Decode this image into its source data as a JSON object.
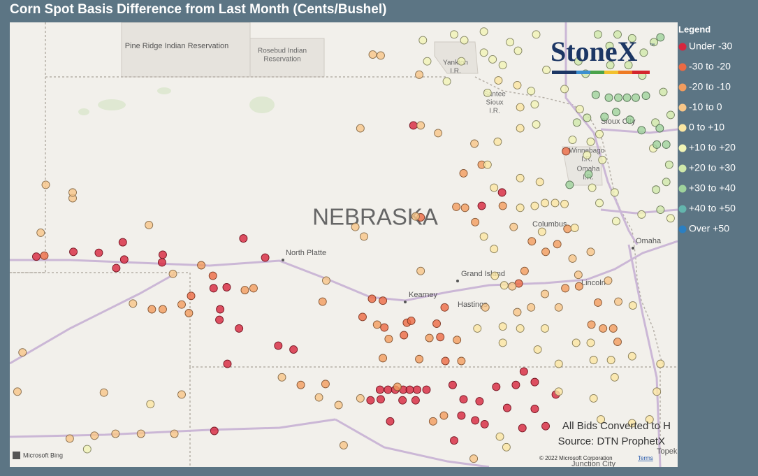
{
  "title": "Corn Spot Basis Difference from Last Month (Cents/Bushel)",
  "legend": {
    "title": "Legend",
    "items": [
      {
        "label": "Under -30",
        "color": "#d7263d"
      },
      {
        "label": "-30 to -20",
        "color": "#ec6a43"
      },
      {
        "label": "-20 to -10",
        "color": "#f29c5e"
      },
      {
        "label": "-10 to 0",
        "color": "#f8c688"
      },
      {
        "label": "0 to +10",
        "color": "#fbe6a2"
      },
      {
        "label": "+10 to +20",
        "color": "#f1f4b6"
      },
      {
        "label": "+20 to +30",
        "color": "#cfe8aa"
      },
      {
        "label": "+30 to +40",
        "color": "#9fd39c"
      },
      {
        "label": "+40 to +50",
        "color": "#63b5ad"
      },
      {
        "label": "Over +50",
        "color": "#2b7fc1"
      }
    ]
  },
  "logo": {
    "name": "StoneX",
    "mark": "™"
  },
  "map_labels": {
    "pine_ridge": "Pine Ridge Indian Reservation",
    "rosebud": [
      "Rosebud Indian",
      "Reservation"
    ],
    "yankton": [
      "Yankton",
      "I.R."
    ],
    "santee": [
      "Santee",
      "Sioux",
      "I.R."
    ],
    "sioux_city": "Sioux City",
    "winnebago": [
      "Winnebago",
      "I.R."
    ],
    "omaha_ir": [
      "Omaha",
      "I.R."
    ],
    "state": "NEBRASKA",
    "north_platte": "North Platte",
    "grand_island": "Grand Island",
    "kearney": "Kearney",
    "hastings": "Hastings",
    "columbus": "Columbus",
    "lincoln": "Lincoln",
    "omaha": "Omaha",
    "junction_city": "Junction City",
    "topeka": "Topek"
  },
  "notes": [
    "All Bids Converted to H",
    "Source: DTN ProphetX"
  ],
  "attribution": {
    "bing": "Microsoft Bing",
    "copyright": "© 2022 Microsoft Corporation",
    "terms": "Terms"
  },
  "bids": [
    [
      -104.2,
      41.16,
      0
    ],
    [
      -103.69,
      41.21,
      0
    ],
    [
      -103.34,
      41.2,
      0
    ],
    [
      -103.01,
      41.31,
      0
    ],
    [
      -102.99,
      41.13,
      0
    ],
    [
      -103.1,
      41.04,
      0
    ],
    [
      -102.46,
      41.18,
      0
    ],
    [
      -102.47,
      41.1,
      0
    ],
    [
      -101.35,
      41.35,
      0
    ],
    [
      -101.05,
      41.15,
      0
    ],
    [
      -101.76,
      40.83,
      0
    ],
    [
      -101.58,
      40.84,
      0
    ],
    [
      -101.67,
      40.61,
      0
    ],
    [
      -101.68,
      40.5,
      0
    ],
    [
      -101.41,
      40.41,
      0
    ],
    [
      -100.87,
      40.23,
      0
    ],
    [
      -100.66,
      40.19,
      0
    ],
    [
      -101.57,
      40.04,
      0
    ],
    [
      -101.75,
      39.34,
      0
    ],
    [
      -99.01,
      42.53,
      0
    ],
    [
      -97.79,
      41.83,
      0
    ],
    [
      -98.07,
      41.69,
      0
    ],
    [
      -99.47,
      39.77,
      0
    ],
    [
      -99.36,
      39.77,
      0
    ],
    [
      -99.26,
      39.77,
      0
    ],
    [
      -99.15,
      39.77,
      0
    ],
    [
      -99.06,
      39.77,
      0
    ],
    [
      -98.96,
      39.77,
      0
    ],
    [
      -98.83,
      39.77,
      0
    ],
    [
      -99.6,
      39.66,
      0
    ],
    [
      -99.46,
      39.67,
      0
    ],
    [
      -99.16,
      39.66,
      0
    ],
    [
      -98.98,
      39.66,
      0
    ],
    [
      -99.33,
      39.44,
      0
    ],
    [
      -98.47,
      39.82,
      0
    ],
    [
      -98.32,
      39.67,
      0
    ],
    [
      -98.1,
      39.65,
      0
    ],
    [
      -97.87,
      39.8,
      0
    ],
    [
      -97.6,
      39.82,
      0
    ],
    [
      -97.34,
      39.85,
      0
    ],
    [
      -97.49,
      39.96,
      0
    ],
    [
      -97.72,
      39.58,
      0
    ],
    [
      -97.34,
      39.57,
      0
    ],
    [
      -98.35,
      39.5,
      0
    ],
    [
      -98.16,
      39.45,
      0
    ],
    [
      -98.03,
      39.41,
      0
    ],
    [
      -98.45,
      39.24,
      0
    ],
    [
      -97.51,
      39.37,
      0
    ],
    [
      -97.19,
      39.39,
      0
    ],
    [
      -97.05,
      39.72,
      0
    ],
    [
      -104.09,
      41.17,
      1
    ],
    [
      -102.07,
      40.75,
      1
    ],
    [
      -101.77,
      40.96,
      1
    ],
    [
      -99.43,
      40.7,
      1
    ],
    [
      -99.58,
      40.72,
      1
    ],
    [
      -99.1,
      40.47,
      1
    ],
    [
      -99.14,
      40.34,
      1
    ],
    [
      -99.04,
      40.49,
      1
    ],
    [
      -98.69,
      40.46,
      1
    ],
    [
      -98.64,
      40.32,
      1
    ],
    [
      -98.57,
      40.07,
      1
    ],
    [
      -99.41,
      40.42,
      1
    ],
    [
      -99.71,
      40.53,
      1
    ],
    [
      -96.91,
      42.26,
      1
    ],
    [
      -98.91,
      41.57,
      1
    ],
    [
      -97.56,
      40.88,
      1
    ],
    [
      -98.58,
      40.63,
      1
    ],
    [
      -102.61,
      40.61,
      2
    ],
    [
      -102.2,
      40.66,
      2
    ],
    [
      -102.46,
      40.61,
      2
    ],
    [
      -102.1,
      40.57,
      2
    ],
    [
      -101.93,
      41.07,
      2
    ],
    [
      -101.33,
      40.81,
      2
    ],
    [
      -101.21,
      40.83,
      2
    ],
    [
      -100.26,
      40.69,
      2
    ],
    [
      -99.51,
      40.45,
      2
    ],
    [
      -99.35,
      40.3,
      2
    ],
    [
      -98.79,
      40.31,
      2
    ],
    [
      -98.41,
      40.29,
      2
    ],
    [
      -98.93,
      40.09,
      2
    ],
    [
      -99.43,
      40.1,
      2
    ],
    [
      -98.74,
      39.44,
      2
    ],
    [
      -98.59,
      39.5,
      2
    ],
    [
      -98.07,
      42.12,
      2
    ],
    [
      -98.42,
      41.68,
      2
    ],
    [
      -98.3,
      41.67,
      2
    ],
    [
      -98.32,
      42.03,
      2
    ],
    [
      -98.16,
      41.52,
      2
    ],
    [
      -97.48,
      41.01,
      2
    ],
    [
      -97.19,
      41.21,
      2
    ],
    [
      -96.89,
      41.45,
      2
    ],
    [
      -97.03,
      41.29,
      2
    ],
    [
      -97.38,
      41.32,
      2
    ],
    [
      -96.4,
      40.41,
      2
    ],
    [
      -96.26,
      40.41,
      2
    ],
    [
      -96.2,
      40.27,
      2
    ],
    [
      -96.56,
      40.45,
      2
    ],
    [
      -96.47,
      40.68,
      2
    ],
    [
      -96.73,
      40.85,
      2
    ],
    [
      -96.92,
      40.83,
      2
    ],
    [
      -100.56,
      39.82,
      2
    ],
    [
      -100.22,
      39.83,
      2
    ],
    [
      -99.23,
      39.8,
      2
    ],
    [
      -98.35,
      40.07,
      2
    ],
    [
      -97.78,
      41.69,
      2
    ],
    [
      -104.07,
      41.91,
      3
    ],
    [
      -103.7,
      41.77,
      3
    ],
    [
      -103.7,
      41.83,
      3
    ],
    [
      -102.65,
      41.49,
      3
    ],
    [
      -104.14,
      41.41,
      3
    ],
    [
      -102.32,
      40.98,
      3
    ],
    [
      -102.87,
      40.67,
      3
    ],
    [
      -102.2,
      39.72,
      3
    ],
    [
      -103.27,
      39.74,
      3
    ],
    [
      -104.39,
      40.16,
      3
    ],
    [
      -104.46,
      39.75,
      3
    ],
    [
      -100.82,
      39.9,
      3
    ],
    [
      -100.31,
      39.69,
      3
    ],
    [
      -100.04,
      39.61,
      3
    ],
    [
      -99.74,
      39.68,
      3
    ],
    [
      -100.21,
      40.91,
      3
    ],
    [
      -99.74,
      42.5,
      3
    ],
    [
      -98.91,
      42.53,
      3
    ],
    [
      -98.67,
      42.45,
      3
    ],
    [
      -98.17,
      42.34,
      3
    ],
    [
      -99.57,
      43.27,
      3
    ],
    [
      -99.46,
      43.26,
      3
    ],
    [
      -98.93,
      43.06,
      3
    ],
    [
      -98.98,
      41.58,
      3
    ],
    [
      -99.81,
      41.47,
      3
    ],
    [
      -99.69,
      41.37,
      3
    ],
    [
      -98.91,
      41.01,
      3
    ],
    [
      -97.65,
      40.85,
      3
    ],
    [
      -98.02,
      40.63,
      3
    ],
    [
      -97.2,
      40.77,
      3
    ],
    [
      -97.01,
      40.63,
      3
    ],
    [
      -96.33,
      40.91,
      3
    ],
    [
      -96.19,
      40.69,
      3
    ],
    [
      -97.39,
      40.63,
      3
    ],
    [
      -103.74,
      39.26,
      3
    ],
    [
      -103.4,
      39.29,
      3
    ],
    [
      -103.11,
      39.31,
      3
    ],
    [
      -102.76,
      39.31,
      3
    ],
    [
      -102.3,
      39.31,
      3
    ],
    [
      -99.97,
      39.19,
      3
    ],
    [
      -98.18,
      39.05,
      3
    ],
    [
      -97.63,
      41.47,
      3
    ],
    [
      -96.82,
      41.14,
      3
    ],
    [
      -96.57,
      41.21,
      3
    ],
    [
      -96.74,
      40.97,
      3
    ],
    [
      -97.58,
      40.58,
      3
    ],
    [
      -97.84,
      43.0,
      4
    ],
    [
      -97.58,
      42.95,
      4
    ],
    [
      -97.54,
      42.72,
      4
    ],
    [
      -97.54,
      42.5,
      4
    ],
    [
      -97.85,
      42.36,
      4
    ],
    [
      -97.54,
      41.98,
      4
    ],
    [
      -97.27,
      41.94,
      4
    ],
    [
      -97.9,
      41.88,
      4
    ],
    [
      -97.99,
      42.12,
      4
    ],
    [
      -97.34,
      41.69,
      4
    ],
    [
      -97.2,
      41.72,
      4
    ],
    [
      -97.06,
      41.72,
      4
    ],
    [
      -96.93,
      41.71,
      4
    ],
    [
      -97.54,
      41.67,
      4
    ],
    [
      -98.04,
      41.37,
      4
    ],
    [
      -97.9,
      41.24,
      4
    ],
    [
      -97.24,
      41.42,
      4
    ],
    [
      -96.79,
      41.46,
      4
    ],
    [
      -97.89,
      40.96,
      4
    ],
    [
      -97.76,
      40.86,
      4
    ],
    [
      -98.13,
      40.41,
      4
    ],
    [
      -97.78,
      40.43,
      4
    ],
    [
      -97.54,
      40.41,
      4
    ],
    [
      -97.78,
      40.26,
      4
    ],
    [
      -97.2,
      40.41,
      4
    ],
    [
      -96.77,
      40.26,
      4
    ],
    [
      -96.57,
      40.26,
      4
    ],
    [
      -96.53,
      40.08,
      4
    ],
    [
      -97.01,
      40.04,
      4
    ],
    [
      -97.3,
      40.19,
      4
    ],
    [
      -96.29,
      40.08,
      4
    ],
    [
      -96.24,
      39.9,
      4
    ],
    [
      -96.0,
      40.12,
      4
    ],
    [
      -95.99,
      40.65,
      4
    ],
    [
      -97.01,
      39.75,
      4
    ],
    [
      -96.53,
      39.68,
      4
    ],
    [
      -95.76,
      39.46,
      4
    ],
    [
      -95.66,
      39.75,
      4
    ],
    [
      -96.43,
      39.46,
      4
    ],
    [
      -96.0,
      39.42,
      4
    ],
    [
      -95.61,
      40.04,
      4
    ],
    [
      -102.63,
      39.62,
      4
    ],
    [
      -97.82,
      39.28,
      4
    ],
    [
      -97.73,
      39.17,
      4
    ],
    [
      -97.92,
      43.22,
      5
    ],
    [
      -97.78,
      43.16,
      5
    ],
    [
      -97.99,
      42.87,
      5
    ],
    [
      -97.39,
      42.89,
      5
    ],
    [
      -97.34,
      42.75,
      5
    ],
    [
      -97.32,
      42.54,
      5
    ],
    [
      -97.18,
      43.11,
      5
    ],
    [
      -96.93,
      42.91,
      5
    ],
    [
      -96.72,
      42.7,
      5
    ],
    [
      -96.45,
      42.44,
      5
    ],
    [
      -96.82,
      42.38,
      5
    ],
    [
      -96.57,
      42.36,
      5
    ],
    [
      -96.62,
      42.22,
      5
    ],
    [
      -96.41,
      42.17,
      5
    ],
    [
      -96.55,
      41.88,
      5
    ],
    [
      -96.24,
      41.83,
      5
    ],
    [
      -96.45,
      41.72,
      5
    ],
    [
      -96.22,
      41.53,
      5
    ],
    [
      -98.31,
      43.42,
      5
    ],
    [
      -98.04,
      43.29,
      5
    ],
    [
      -98.04,
      43.51,
      5
    ],
    [
      -97.32,
      43.48,
      5
    ],
    [
      -97.57,
      43.31,
      5
    ],
    [
      -97.68,
      43.4,
      5
    ],
    [
      -98.35,
      43.2,
      5
    ],
    [
      -98.55,
      42.99,
      5
    ],
    [
      -98.82,
      43.2,
      5
    ],
    [
      -103.5,
      39.15,
      5
    ],
    [
      -98.88,
      43.42,
      5
    ],
    [
      -98.45,
      43.48,
      5
    ],
    [
      -95.71,
      42.29,
      5
    ],
    [
      -95.47,
      41.56,
      5
    ],
    [
      -95.87,
      41.6,
      5
    ],
    [
      -96.62,
      42.61,
      6
    ],
    [
      -96.76,
      42.56,
      6
    ],
    [
      -96.05,
      43.16,
      6
    ],
    [
      -95.84,
      43.29,
      6
    ],
    [
      -95.57,
      42.88,
      6
    ],
    [
      -96.64,
      43.07,
      6
    ],
    [
      -96.74,
      43.2,
      6
    ],
    [
      -96.47,
      43.48,
      6
    ],
    [
      -96.31,
      43.36,
      6
    ],
    [
      -96.3,
      43.16,
      6
    ],
    [
      -95.86,
      43.05,
      6
    ],
    [
      -95.68,
      42.56,
      6
    ],
    [
      -95.49,
      42.12,
      6
    ],
    [
      -95.67,
      41.86,
      6
    ],
    [
      -95.53,
      41.94,
      6
    ],
    [
      -95.47,
      42.64,
      6
    ],
    [
      -96.2,
      43.48,
      6
    ],
    [
      -96.0,
      43.44,
      6
    ],
    [
      -95.7,
      43.4,
      6
    ],
    [
      -95.61,
      41.65,
      6
    ],
    [
      -96.32,
      42.82,
      7
    ],
    [
      -96.19,
      42.82,
      7
    ],
    [
      -96.07,
      42.82,
      7
    ],
    [
      -95.95,
      42.82,
      7
    ],
    [
      -95.81,
      42.84,
      7
    ],
    [
      -96.5,
      42.85,
      7
    ],
    [
      -96.22,
      42.67,
      7
    ],
    [
      -96.03,
      42.59,
      7
    ],
    [
      -96.6,
      42.02,
      7
    ],
    [
      -96.86,
      41.91,
      7
    ],
    [
      -95.66,
      42.33,
      7
    ],
    [
      -95.53,
      42.33,
      7
    ],
    [
      -95.62,
      42.5,
      7
    ],
    [
      -95.87,
      42.48,
      7
    ],
    [
      -95.61,
      43.45,
      7
    ],
    [
      -96.38,
      42.62,
      7
    ]
  ]
}
